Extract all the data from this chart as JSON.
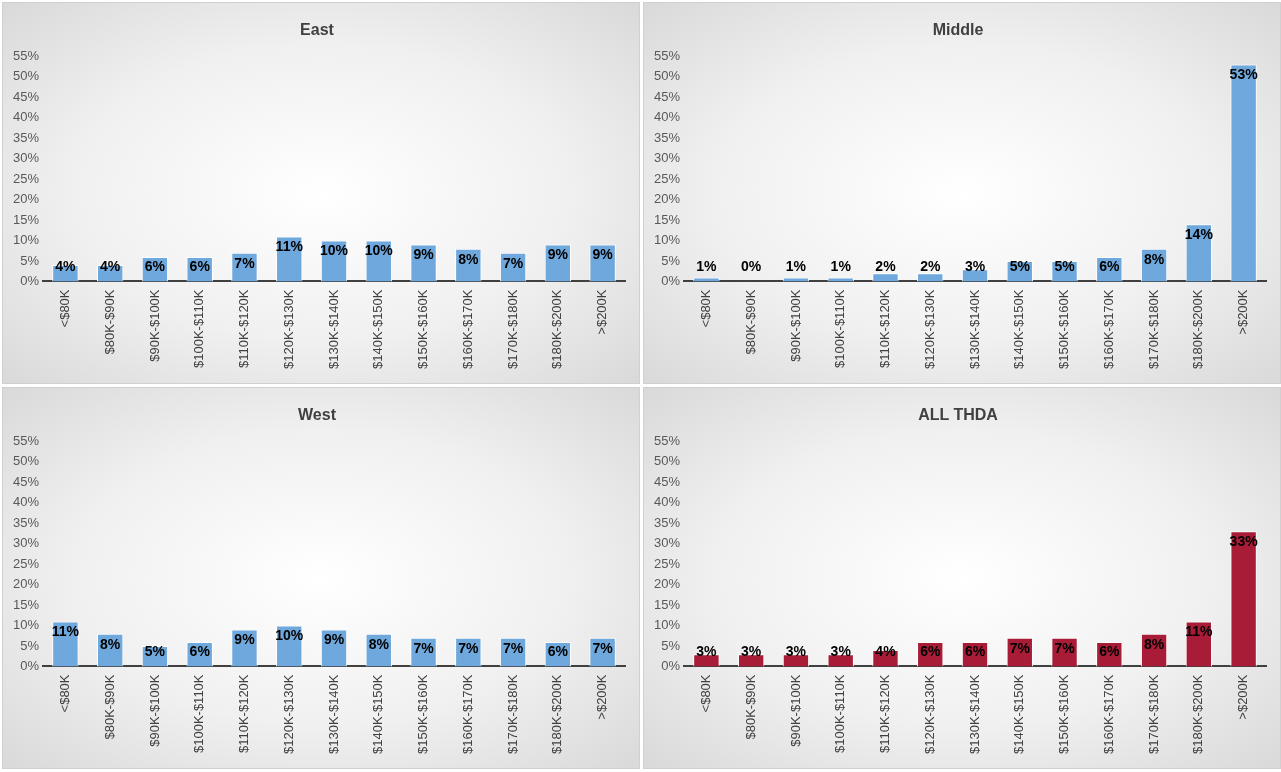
{
  "chart_data": [
    {
      "type": "bar",
      "title": "East",
      "categories": [
        "<$80K",
        "$80K-$90K",
        "$90K-$100K",
        "$100K-$110K",
        "$110K-$120K",
        "$120K-$130K",
        "$130K-$140K",
        "$140K-$150K",
        "$150K-$160K",
        "$160K-$170K",
        "$170K-$180K",
        "$180K-$200K",
        ">$200K"
      ],
      "series": [
        {
          "color": "#6fa8dc",
          "values": [
            4,
            4,
            6,
            6,
            7,
            11,
            10,
            10,
            9,
            8,
            7,
            9,
            9
          ],
          "value_labels": [
            "4%",
            "4%",
            "6%",
            "6%",
            "7%",
            "11%",
            "10%",
            "10%",
            "9%",
            "8%",
            "7%",
            "9%",
            "9%"
          ]
        }
      ],
      "ylim": [
        0,
        55
      ],
      "yticks": [
        {
          "value": 0,
          "label": "0%"
        },
        {
          "value": 5,
          "label": "5%"
        },
        {
          "value": 10,
          "label": "10%"
        },
        {
          "value": 15,
          "label": "15%"
        },
        {
          "value": 20,
          "label": "20%"
        },
        {
          "value": 25,
          "label": "25%"
        },
        {
          "value": 30,
          "label": "30%"
        },
        {
          "value": 35,
          "label": "35%"
        },
        {
          "value": 40,
          "label": "40%"
        },
        {
          "value": 45,
          "label": "45%"
        },
        {
          "value": 50,
          "label": "50%"
        },
        {
          "value": 55,
          "label": "55%"
        }
      ],
      "grid": false,
      "legend": false
    },
    {
      "type": "bar",
      "title": "Middle",
      "categories": [
        "<$80K",
        "$80K-$90K",
        "$90K-$100K",
        "$100K-$110K",
        "$110K-$120K",
        "$120K-$130K",
        "$130K-$140K",
        "$140K-$150K",
        "$150K-$160K",
        "$160K-$170K",
        "$170K-$180K",
        "$180K-$200K",
        ">$200K"
      ],
      "series": [
        {
          "color": "#6fa8dc",
          "values": [
            1,
            0,
            1,
            1,
            2,
            2,
            3,
            5,
            5,
            6,
            8,
            14,
            53
          ],
          "value_labels": [
            "1%",
            "0%",
            "1%",
            "1%",
            "2%",
            "2%",
            "3%",
            "5%",
            "5%",
            "6%",
            "8%",
            "14%",
            "53%"
          ]
        }
      ],
      "ylim": [
        0,
        55
      ],
      "yticks": [
        {
          "value": 0,
          "label": "0%"
        },
        {
          "value": 5,
          "label": "5%"
        },
        {
          "value": 10,
          "label": "10%"
        },
        {
          "value": 15,
          "label": "15%"
        },
        {
          "value": 20,
          "label": "20%"
        },
        {
          "value": 25,
          "label": "25%"
        },
        {
          "value": 30,
          "label": "30%"
        },
        {
          "value": 35,
          "label": "35%"
        },
        {
          "value": 40,
          "label": "40%"
        },
        {
          "value": 45,
          "label": "45%"
        },
        {
          "value": 50,
          "label": "50%"
        },
        {
          "value": 55,
          "label": "55%"
        }
      ],
      "grid": false,
      "legend": false
    },
    {
      "type": "bar",
      "title": "West",
      "categories": [
        "<$80K",
        "$80K-$90K",
        "$90K-$100K",
        "$100K-$110K",
        "$110K-$120K",
        "$120K-$130K",
        "$130K-$140K",
        "$140K-$150K",
        "$150K-$160K",
        "$160K-$170K",
        "$170K-$180K",
        "$180K-$200K",
        ">$200K"
      ],
      "series": [
        {
          "color": "#6fa8dc",
          "values": [
            11,
            8,
            5,
            6,
            9,
            10,
            9,
            8,
            7,
            7,
            7,
            6,
            7
          ],
          "value_labels": [
            "11%",
            "8%",
            "5%",
            "6%",
            "9%",
            "10%",
            "9%",
            "8%",
            "7%",
            "7%",
            "7%",
            "6%",
            "7%"
          ]
        }
      ],
      "ylim": [
        0,
        55
      ],
      "yticks": [
        {
          "value": 0,
          "label": "0%"
        },
        {
          "value": 5,
          "label": "5%"
        },
        {
          "value": 10,
          "label": "10%"
        },
        {
          "value": 15,
          "label": "15%"
        },
        {
          "value": 20,
          "label": "20%"
        },
        {
          "value": 25,
          "label": "25%"
        },
        {
          "value": 30,
          "label": "30%"
        },
        {
          "value": 35,
          "label": "35%"
        },
        {
          "value": 40,
          "label": "40%"
        },
        {
          "value": 45,
          "label": "45%"
        },
        {
          "value": 50,
          "label": "50%"
        },
        {
          "value": 55,
          "label": "55%"
        }
      ],
      "grid": false,
      "legend": false
    },
    {
      "type": "bar",
      "title": "ALL THDA",
      "categories": [
        "<$80K",
        "$80K-$90K",
        "$90K-$100K",
        "$100K-$110K",
        "$110K-$120K",
        "$120K-$130K",
        "$130K-$140K",
        "$140K-$150K",
        "$150K-$160K",
        "$160K-$170K",
        "$170K-$180K",
        "$180K-$200K",
        ">$200K"
      ],
      "series": [
        {
          "color": "#a81c38",
          "values": [
            3,
            3,
            3,
            3,
            4,
            6,
            6,
            7,
            7,
            6,
            8,
            11,
            33
          ],
          "value_labels": [
            "3%",
            "3%",
            "3%",
            "3%",
            "4%",
            "6%",
            "6%",
            "7%",
            "7%",
            "6%",
            "8%",
            "11%",
            "33%"
          ]
        }
      ],
      "ylim": [
        0,
        55
      ],
      "yticks": [
        {
          "value": 0,
          "label": "0%"
        },
        {
          "value": 5,
          "label": "5%"
        },
        {
          "value": 10,
          "label": "10%"
        },
        {
          "value": 15,
          "label": "15%"
        },
        {
          "value": 20,
          "label": "20%"
        },
        {
          "value": 25,
          "label": "25%"
        },
        {
          "value": 30,
          "label": "30%"
        },
        {
          "value": 35,
          "label": "35%"
        },
        {
          "value": 40,
          "label": "40%"
        },
        {
          "value": 45,
          "label": "45%"
        },
        {
          "value": 50,
          "label": "50%"
        },
        {
          "value": 55,
          "label": "55%"
        }
      ],
      "grid": false,
      "legend": false
    }
  ]
}
